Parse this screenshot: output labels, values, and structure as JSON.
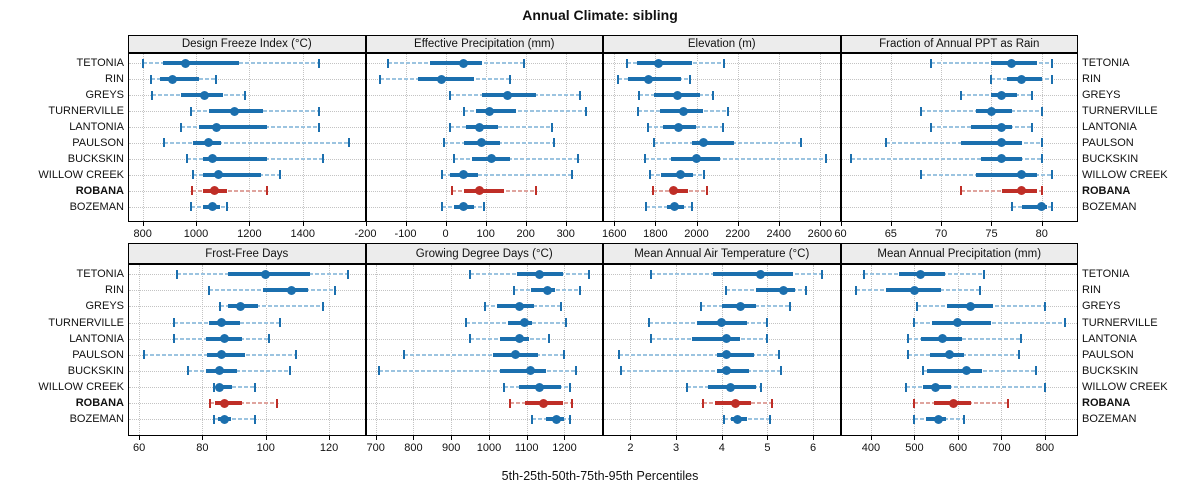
{
  "title": "Annual Climate: sibling",
  "caption": "5th-25th-50th-75th-95th Percentiles",
  "highlight_site": "ROBANA",
  "sites": [
    "TETONIA",
    "RIN",
    "GREYS",
    "TURNERVILLE",
    "LANTONIA",
    "PAULSON",
    "BUCKSKIN",
    "WILLOW CREEK",
    "ROBANA",
    "BOZEMAN"
  ],
  "colors": {
    "series_dark": "#1b6fae",
    "series_light": "#9cc4e0",
    "highlight_dark": "#bf2e27",
    "highlight_light": "#dfa49e",
    "grid": "#c3c3c3",
    "header_bg": "#ececec",
    "text": "#111111"
  },
  "chart_data": [
    {
      "type": "scatter",
      "title": "Design Freeze Index (°C)",
      "position": {
        "row": 0,
        "col": 0
      },
      "xlim": [
        745,
        1635
      ],
      "ticks": [
        800,
        1000,
        1200,
        1400
      ],
      "percentiles": [
        5,
        25,
        50,
        75,
        95
      ],
      "series": [
        {
          "name": "TETONIA",
          "values": [
            800,
            875,
            960,
            1160,
            1460
          ]
        },
        {
          "name": "RIN",
          "values": [
            830,
            865,
            910,
            1010,
            1075
          ]
        },
        {
          "name": "GREYS",
          "values": [
            835,
            945,
            1030,
            1100,
            1185
          ]
        },
        {
          "name": "TURNERVILLE",
          "values": [
            980,
            1050,
            1145,
            1250,
            1460
          ]
        },
        {
          "name": "LANTONIA",
          "values": [
            945,
            1010,
            1075,
            1265,
            1460
          ]
        },
        {
          "name": "PAULSON",
          "values": [
            880,
            990,
            1045,
            1095,
            1575
          ]
        },
        {
          "name": "BUCKSKIN",
          "values": [
            965,
            1025,
            1060,
            1265,
            1475
          ]
        },
        {
          "name": "WILLOW CREEK",
          "values": [
            990,
            1025,
            1085,
            1245,
            1315
          ]
        },
        {
          "name": "ROBANA",
          "values": [
            985,
            1025,
            1070,
            1115,
            1265
          ]
        },
        {
          "name": "BOZEMAN",
          "values": [
            980,
            1025,
            1060,
            1090,
            1115
          ]
        }
      ]
    },
    {
      "type": "scatter",
      "title": "Effective Precipitation (mm)",
      "position": {
        "row": 0,
        "col": 1
      },
      "xlim": [
        -200,
        393
      ],
      "ticks": [
        -200,
        -100,
        0,
        100,
        200,
        300
      ],
      "percentiles": [
        5,
        25,
        50,
        75,
        95
      ],
      "series": [
        {
          "name": "TETONIA",
          "values": [
            -145,
            -40,
            45,
            90,
            195
          ]
        },
        {
          "name": "RIN",
          "values": [
            -165,
            -70,
            -10,
            70,
            160
          ]
        },
        {
          "name": "GREYS",
          "values": [
            10,
            90,
            155,
            225,
            335
          ]
        },
        {
          "name": "TURNERVILLE",
          "values": [
            45,
            75,
            110,
            175,
            350
          ]
        },
        {
          "name": "LANTONIA",
          "values": [
            10,
            50,
            85,
            130,
            265
          ]
        },
        {
          "name": "PAULSON",
          "values": [
            -5,
            45,
            90,
            135,
            270
          ]
        },
        {
          "name": "BUCKSKIN",
          "values": [
            20,
            65,
            115,
            160,
            330
          ]
        },
        {
          "name": "WILLOW CREEK",
          "values": [
            -10,
            10,
            45,
            80,
            315
          ]
        },
        {
          "name": "ROBANA",
          "values": [
            15,
            45,
            85,
            145,
            225
          ]
        },
        {
          "name": "BOZEMAN",
          "values": [
            -10,
            20,
            45,
            70,
            95
          ]
        }
      ]
    },
    {
      "type": "scatter",
      "title": "Elevation (m)",
      "position": {
        "row": 0,
        "col": 2
      },
      "xlim": [
        1545,
        2700
      ],
      "ticks": [
        1600,
        1800,
        2000,
        2200,
        2400,
        2600
      ],
      "percentiles": [
        5,
        25,
        50,
        75,
        95
      ],
      "series": [
        {
          "name": "TETONIA",
          "values": [
            1660,
            1710,
            1815,
            1980,
            2135
          ]
        },
        {
          "name": "RIN",
          "values": [
            1620,
            1665,
            1765,
            1925,
            1970
          ]
        },
        {
          "name": "GREYS",
          "values": [
            1720,
            1795,
            1905,
            2015,
            2080
          ]
        },
        {
          "name": "TURNERVILLE",
          "values": [
            1715,
            1820,
            1935,
            2030,
            2155
          ]
        },
        {
          "name": "LANTONIA",
          "values": [
            1765,
            1835,
            1910,
            1995,
            2130
          ]
        },
        {
          "name": "PAULSON",
          "values": [
            1795,
            1980,
            2035,
            2180,
            2510
          ]
        },
        {
          "name": "BUCKSKIN",
          "values": [
            1750,
            1875,
            2000,
            2115,
            2630
          ]
        },
        {
          "name": "WILLOW CREEK",
          "values": [
            1775,
            1825,
            1920,
            1985,
            2035
          ]
        },
        {
          "name": "ROBANA",
          "values": [
            1790,
            1870,
            1890,
            1960,
            2050
          ]
        },
        {
          "name": "BOZEMAN",
          "values": [
            1755,
            1855,
            1895,
            1940,
            1980
          ]
        }
      ]
    },
    {
      "type": "scatter",
      "title": "Fraction of Annual PPT as Rain",
      "position": {
        "row": 0,
        "col": 3
      },
      "xlim": [
        60,
        83.6
      ],
      "ticks": [
        60,
        65,
        70,
        75,
        80
      ],
      "percentiles": [
        5,
        25,
        50,
        75,
        95
      ],
      "series": [
        {
          "name": "TETONIA",
          "values": [
            69,
            75,
            77,
            79.5,
            81
          ]
        },
        {
          "name": "RIN",
          "values": [
            75,
            76.5,
            78,
            80,
            81
          ]
        },
        {
          "name": "GREYS",
          "values": [
            72,
            75,
            76,
            77.5,
            79
          ]
        },
        {
          "name": "TURNERVILLE",
          "values": [
            68,
            73.5,
            75,
            77,
            80
          ]
        },
        {
          "name": "LANTONIA",
          "values": [
            69,
            73,
            76,
            77,
            79
          ]
        },
        {
          "name": "PAULSON",
          "values": [
            64.5,
            72,
            76,
            78,
            80
          ]
        },
        {
          "name": "BUCKSKIN",
          "values": [
            61,
            74,
            76,
            78,
            80
          ]
        },
        {
          "name": "WILLOW CREEK",
          "values": [
            68,
            73.5,
            78,
            79.5,
            81
          ]
        },
        {
          "name": "ROBANA",
          "values": [
            72,
            76,
            78,
            79.5,
            80
          ]
        },
        {
          "name": "BOZEMAN",
          "values": [
            77,
            78,
            80,
            80.5,
            81
          ]
        }
      ]
    },
    {
      "type": "scatter",
      "title": "Frost-Free Days",
      "position": {
        "row": 1,
        "col": 0
      },
      "xlim": [
        56.5,
        131.5
      ],
      "ticks": [
        60,
        80,
        100,
        120
      ],
      "percentiles": [
        5,
        25,
        50,
        75,
        95
      ],
      "series": [
        {
          "name": "TETONIA",
          "values": [
            72,
            88,
            100,
            114,
            126
          ]
        },
        {
          "name": "RIN",
          "values": [
            82,
            99,
            108,
            113.5,
            122
          ]
        },
        {
          "name": "GREYS",
          "values": [
            85.5,
            88,
            92,
            97.5,
            118
          ]
        },
        {
          "name": "TURNERVILLE",
          "values": [
            71,
            82,
            86,
            92,
            104.5
          ]
        },
        {
          "name": "LANTONIA",
          "values": [
            71,
            81,
            87,
            92.5,
            101
          ]
        },
        {
          "name": "PAULSON",
          "values": [
            61.5,
            81.5,
            86,
            93.5,
            109.5
          ]
        },
        {
          "name": "BUCKSKIN",
          "values": [
            75.5,
            81,
            85.5,
            91,
            107.5
          ]
        },
        {
          "name": "WILLOW CREEK",
          "values": [
            83.5,
            84.5,
            85.5,
            89.5,
            96.5
          ]
        },
        {
          "name": "ROBANA",
          "values": [
            82.5,
            84,
            87,
            92.5,
            103.5
          ]
        },
        {
          "name": "BOZEMAN",
          "values": [
            83.5,
            85,
            87,
            89,
            96.5
          ]
        }
      ]
    },
    {
      "type": "scatter",
      "title": "Growing Degree Days (°C)",
      "position": {
        "row": 1,
        "col": 1
      },
      "xlim": [
        673,
        1302
      ],
      "ticks": [
        700,
        800,
        900,
        1000,
        1100,
        1200
      ],
      "percentiles": [
        5,
        25,
        50,
        75,
        95
      ],
      "series": [
        {
          "name": "TETONIA",
          "values": [
            950,
            1075,
            1135,
            1195,
            1265
          ]
        },
        {
          "name": "RIN",
          "values": [
            1065,
            1110,
            1155,
            1175,
            1240
          ]
        },
        {
          "name": "GREYS",
          "values": [
            990,
            1020,
            1080,
            1120,
            1190
          ]
        },
        {
          "name": "TURNERVILLE",
          "values": [
            940,
            1050,
            1095,
            1115,
            1205
          ]
        },
        {
          "name": "LANTONIA",
          "values": [
            950,
            1030,
            1080,
            1105,
            1160
          ]
        },
        {
          "name": "PAULSON",
          "values": [
            775,
            1010,
            1070,
            1130,
            1200
          ]
        },
        {
          "name": "BUCKSKIN",
          "values": [
            710,
            1030,
            1110,
            1150,
            1230
          ]
        },
        {
          "name": "WILLOW CREEK",
          "values": [
            1040,
            1080,
            1135,
            1190,
            1215
          ]
        },
        {
          "name": "ROBANA",
          "values": [
            1055,
            1095,
            1145,
            1195,
            1220
          ]
        },
        {
          "name": "BOZEMAN",
          "values": [
            1115,
            1150,
            1180,
            1200,
            1215
          ]
        }
      ]
    },
    {
      "type": "scatter",
      "title": "Mean Annual Air Temperature (°C)",
      "position": {
        "row": 1,
        "col": 2
      },
      "xlim": [
        1.4,
        6.6
      ],
      "ticks": [
        2,
        3,
        4,
        5,
        6
      ],
      "percentiles": [
        5,
        25,
        50,
        75,
        95
      ],
      "series": [
        {
          "name": "TETONIA",
          "values": [
            2.45,
            3.8,
            4.85,
            5.55,
            6.2
          ]
        },
        {
          "name": "RIN",
          "values": [
            4.1,
            4.75,
            5.35,
            5.6,
            5.85
          ]
        },
        {
          "name": "GREYS",
          "values": [
            3.55,
            4.0,
            4.4,
            4.75,
            5.5
          ]
        },
        {
          "name": "TURNERVILLE",
          "values": [
            2.4,
            3.45,
            4.0,
            4.55,
            5.0
          ]
        },
        {
          "name": "LANTONIA",
          "values": [
            2.45,
            3.35,
            4.1,
            4.4,
            5.0
          ]
        },
        {
          "name": "PAULSON",
          "values": [
            1.75,
            3.9,
            4.1,
            4.7,
            5.25
          ]
        },
        {
          "name": "BUCKSKIN",
          "values": [
            1.8,
            3.9,
            4.1,
            4.6,
            5.3
          ]
        },
        {
          "name": "WILLOW CREEK",
          "values": [
            3.25,
            3.7,
            4.2,
            4.75,
            4.85
          ]
        },
        {
          "name": "ROBANA",
          "values": [
            3.6,
            3.85,
            4.3,
            4.65,
            5.1
          ]
        },
        {
          "name": "BOZEMAN",
          "values": [
            4.05,
            4.2,
            4.35,
            4.55,
            5.05
          ]
        }
      ]
    },
    {
      "type": "scatter",
      "title": "Mean Annual Precipitation (mm)",
      "position": {
        "row": 1,
        "col": 3
      },
      "xlim": [
        330,
        876
      ],
      "ticks": [
        400,
        500,
        600,
        700,
        800
      ],
      "percentiles": [
        5,
        25,
        50,
        75,
        95
      ],
      "series": [
        {
          "name": "TETONIA",
          "values": [
            385,
            465,
            515,
            570,
            660
          ]
        },
        {
          "name": "RIN",
          "values": [
            365,
            435,
            500,
            560,
            650
          ]
        },
        {
          "name": "GREYS",
          "values": [
            505,
            575,
            630,
            680,
            800
          ]
        },
        {
          "name": "TURNERVILLE",
          "values": [
            500,
            540,
            600,
            675,
            845
          ]
        },
        {
          "name": "LANTONIA",
          "values": [
            485,
            515,
            565,
            610,
            745
          ]
        },
        {
          "name": "PAULSON",
          "values": [
            485,
            535,
            580,
            615,
            740
          ]
        },
        {
          "name": "BUCKSKIN",
          "values": [
            520,
            530,
            620,
            655,
            780
          ]
        },
        {
          "name": "WILLOW CREEK",
          "values": [
            480,
            520,
            548,
            585,
            800
          ]
        },
        {
          "name": "ROBANA",
          "values": [
            500,
            545,
            590,
            630,
            715
          ]
        },
        {
          "name": "BOZEMAN",
          "values": [
            498,
            527,
            555,
            573,
            615
          ]
        }
      ]
    }
  ]
}
